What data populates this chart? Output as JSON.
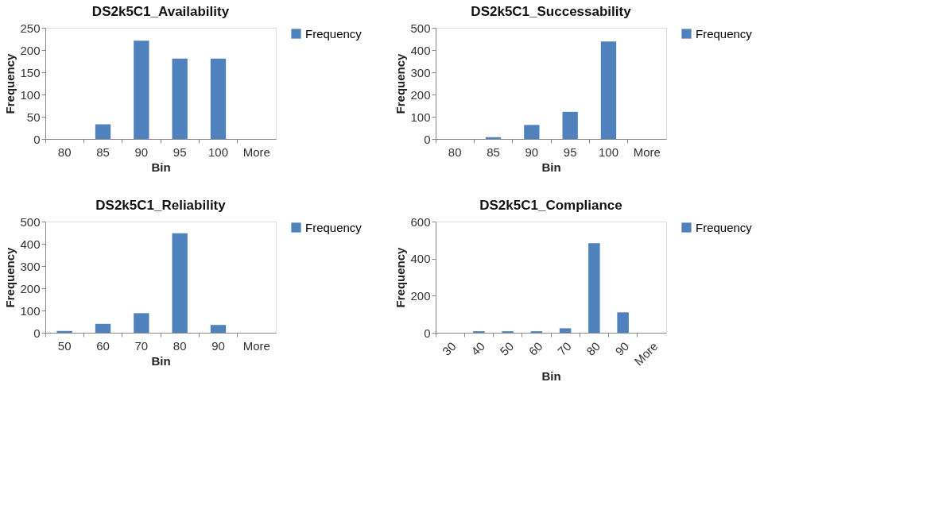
{
  "chart_data": [
    {
      "type": "bar",
      "title": "DS2k5C1_Availability",
      "xlabel": "Bin",
      "ylabel": "Frequency",
      "categories": [
        "80",
        "85",
        "90",
        "95",
        "100",
        "More"
      ],
      "series": [
        {
          "name": "Frequency",
          "color": "#4f81bd",
          "values": [
            0,
            33,
            221,
            181,
            181,
            0
          ]
        }
      ],
      "ylim": [
        0,
        250
      ],
      "yticks": [
        0,
        50,
        100,
        150,
        200,
        250
      ],
      "legend": "right",
      "grid": false
    },
    {
      "type": "bar",
      "title": "DS2k5C1_Successability",
      "xlabel": "Bin",
      "ylabel": "Frequency",
      "categories": [
        "80",
        "85",
        "90",
        "95",
        "100",
        "More"
      ],
      "series": [
        {
          "name": "Frequency",
          "color": "#4f81bd",
          "values": [
            0,
            8,
            63,
            122,
            438,
            0
          ]
        }
      ],
      "ylim": [
        0,
        500
      ],
      "yticks": [
        0,
        100,
        200,
        300,
        400,
        500
      ],
      "legend": "right",
      "grid": false
    },
    {
      "type": "bar",
      "title": "DS2k5C1_Reliability",
      "xlabel": "Bin",
      "ylabel": "Frequency",
      "categories": [
        "50",
        "60",
        "70",
        "80",
        "90",
        "More"
      ],
      "series": [
        {
          "name": "Frequency",
          "color": "#4f81bd",
          "values": [
            8,
            40,
            88,
            447,
            35,
            0
          ]
        }
      ],
      "ylim": [
        0,
        500
      ],
      "yticks": [
        0,
        100,
        200,
        300,
        400,
        500
      ],
      "legend": "right",
      "grid": false
    },
    {
      "type": "bar",
      "title": "DS2k5C1_Compliance",
      "xlabel": "Bin",
      "ylabel": "Frequency",
      "categories": [
        "30",
        "40",
        "50",
        "60",
        "70",
        "80",
        "90",
        "More"
      ],
      "series": [
        {
          "name": "Frequency",
          "color": "#4f81bd",
          "values": [
            0,
            8,
            8,
            8,
            24,
            483,
            110,
            0
          ]
        }
      ],
      "ylim": [
        0,
        600
      ],
      "yticks": [
        0,
        200,
        400,
        600
      ],
      "legend": "right",
      "grid": false
    }
  ]
}
